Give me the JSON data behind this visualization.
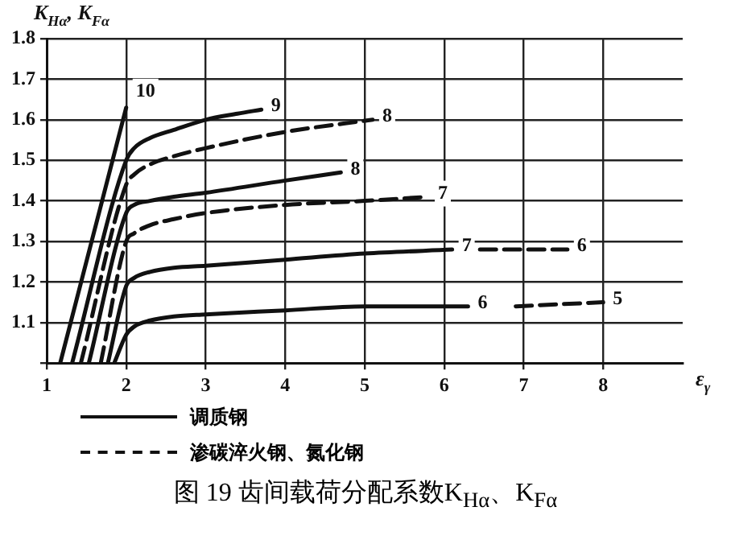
{
  "chart_data": {
    "type": "line",
    "title": "图 19  齿间载荷分配系数K$_{Hα}$、K$_{Fα}$",
    "xlabel": "ε$_{γ}$",
    "ylabel": "K$_{Hα}$, K$_{Fα}$",
    "xlim": [
      1,
      9
    ],
    "xticks": [
      1,
      2,
      3,
      4,
      5,
      6,
      7,
      8
    ],
    "ylim": [
      1,
      1.8
    ],
    "yticks": [
      {
        "value": 1,
        "label": null
      },
      1.1,
      1.2,
      1.3,
      1.4,
      1.5,
      1.6,
      1.7,
      1.8
    ],
    "grid": true,
    "marker": "none",
    "legend": false,
    "annotations": [
      "调质钢",
      "渗碳淬火钢、氮化钢"
    ],
    "series": [
      {
        "name": "10",
        "color": "#111111",
        "line_style": "solid",
        "x": [
          1.17,
          2
        ],
        "values": [
          1,
          1.63
        ]
      },
      {
        "name": "9",
        "color": "#111111",
        "line_style": "solid",
        "x": [
          1.32,
          2,
          2.1,
          2.3,
          2.6,
          3,
          3.4,
          3.7
        ],
        "values": [
          1,
          1.5,
          1.53,
          1.555,
          1.575,
          1.6,
          1.615,
          1.625
        ]
      },
      {
        "name": "8",
        "color": "#111111",
        "line_style": "dashed",
        "x": [
          1.43,
          2,
          2.1,
          2.3,
          2.6,
          3,
          4,
          5.1
        ],
        "values": [
          1,
          1.44,
          1.465,
          1.49,
          1.51,
          1.53,
          1.57,
          1.6
        ]
      },
      {
        "name": "8",
        "color": "#111111",
        "line_style": "solid",
        "x": [
          1.53,
          2,
          2.1,
          2.3,
          2.6,
          3,
          4,
          4.7
        ],
        "values": [
          1,
          1.37,
          1.39,
          1.4,
          1.41,
          1.42,
          1.45,
          1.47
        ]
      },
      {
        "name": "7",
        "color": "#111111",
        "line_style": "dashed",
        "x": [
          1.68,
          2,
          2.1,
          2.3,
          2.6,
          3,
          4,
          5,
          5.8
        ],
        "values": [
          1,
          1.3,
          1.32,
          1.34,
          1.355,
          1.37,
          1.39,
          1.4,
          1.41
        ]
      },
      {
        "name": "7",
        "color": "#111111",
        "line_style": "solid",
        "x": [
          1.77,
          2,
          2.1,
          2.3,
          2.6,
          3,
          4,
          5,
          6.1
        ],
        "values": [
          1,
          1.19,
          1.21,
          1.225,
          1.235,
          1.24,
          1.255,
          1.27,
          1.28
        ]
      },
      {
        "name": "6",
        "color": "#111111",
        "line_style": "dashed",
        "x": [
          6.45,
          7.55
        ],
        "values": [
          1.28,
          1.28
        ]
      },
      {
        "name": "6",
        "color": "#111111",
        "line_style": "solid",
        "x": [
          1.85,
          2,
          2.1,
          2.3,
          2.6,
          3,
          4,
          5,
          6.3
        ],
        "values": [
          1,
          1.07,
          1.09,
          1.105,
          1.115,
          1.12,
          1.13,
          1.14,
          1.14
        ]
      },
      {
        "name": "5",
        "color": "#111111",
        "line_style": "dashed",
        "x": [
          6.9,
          8
        ],
        "values": [
          1.14,
          1.15
        ]
      }
    ]
  }
}
